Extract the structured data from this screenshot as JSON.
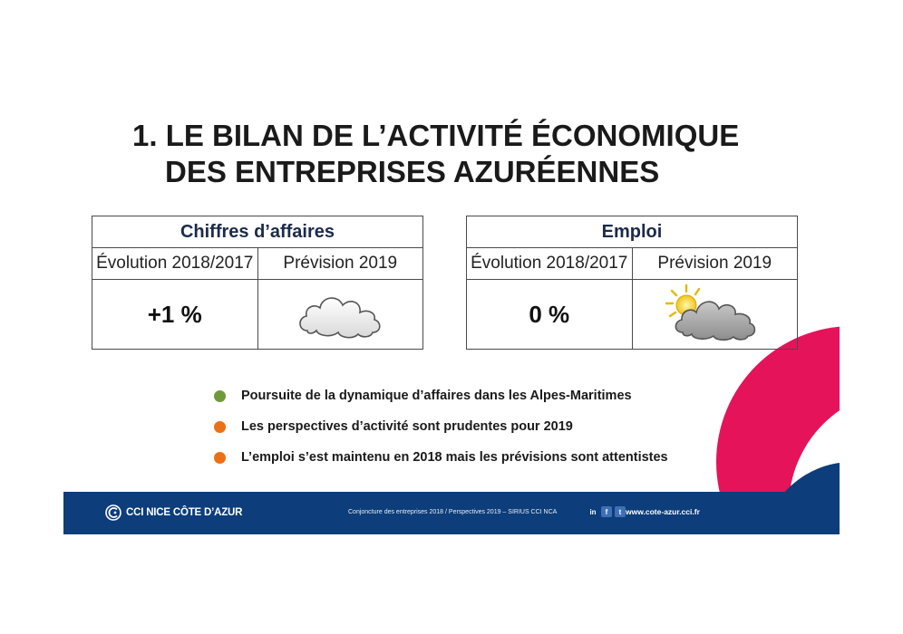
{
  "title": {
    "line1": "1. LE BILAN DE L’ACTIVITÉ ÉCONOMIQUE",
    "line2": "DES ENTREPRISES AZURÉENNES"
  },
  "tables": [
    {
      "heading": "Chiffres d’affaires",
      "col1": "Évolution 2018/2017",
      "col2": "Prévision 2019",
      "value": "+1 %",
      "forecast_icon": "cloud-icon"
    },
    {
      "heading": "Emploi",
      "col1": "Évolution 2018/2017",
      "col2": "Prévision 2019",
      "value": "0 %",
      "forecast_icon": "sun-behind-cloud-icon"
    }
  ],
  "bullets": [
    {
      "text": "Poursuite de la dynamique d’affaires dans les Alpes-Maritimes",
      "color": "#6f9a3a"
    },
    {
      "text": "Les perspectives d’activité sont prudentes pour 2019",
      "color": "#ec7016"
    },
    {
      "text": "L’emploi s’est maintenu en 2018 mais les prévisions sont attentistes",
      "color": "#ec7016"
    }
  ],
  "footer": {
    "brand": "CCI NICE CÔTE D’AZUR",
    "caption": "Conjoncture des entreprises 2018 / Perspectives 2019 – SIRIUS CCI NCA",
    "social": [
      "in",
      "f",
      "t"
    ],
    "url": "www.cote-azur.cci.fr"
  },
  "colors": {
    "footer_bg": "#0d3d7a",
    "accent_pink": "#e5135a"
  }
}
